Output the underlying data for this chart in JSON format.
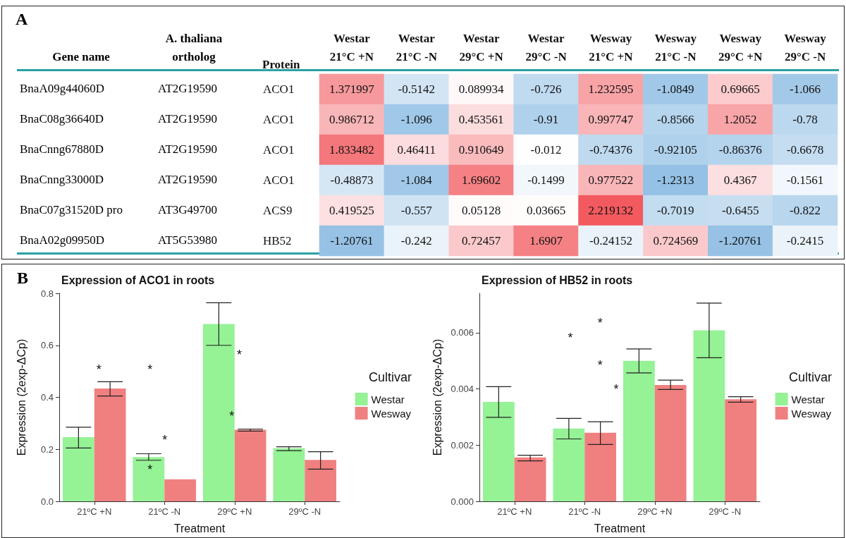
{
  "chart_data": [
    {
      "type": "other",
      "annotations": [
        "Gene name",
        "A. thaliana\northolog",
        "BnaA09g44060D",
        "AT2G19590",
        "BnaC08g36640D",
        "AT2G19590",
        "BnaCnng67880D",
        "AT2G19590",
        "BnaCnng33000D",
        "AT2G19590",
        "BnaC07g31520D pro",
        "AT3G49700",
        "BnaA02g09950D",
        "AT5G53980",
        "A"
      ]
    },
    {
      "type": "heatmap",
      "ylabel": "Protein",
      "categories": [
        "Westar\n21°C +N",
        "Westar\n21°C -N",
        "Westar\n29°C +N",
        "Westar\n29°C -N",
        "Wesway\n21°C +N",
        "Wesway\n21°C -N",
        "Wesway\n29°C +N",
        "Wesway\n29°C -N"
      ],
      "y_categories": [
        "ACO1",
        "ACO1",
        "ACO1",
        "ACO1",
        "ACS9",
        "HB52"
      ],
      "cells": [
        [
          1.371997,
          -0.5142,
          0.089934,
          -0.726,
          1.232595,
          -1.0849,
          0.69665,
          -1.066
        ],
        [
          0.986712,
          -1.096,
          0.453561,
          -0.91,
          0.997747,
          -0.8566,
          1.2052,
          -0.78
        ],
        [
          1.833482,
          0.46411,
          0.910649,
          -0.012,
          -0.74376,
          -0.92105,
          -0.86376,
          -0.6678
        ],
        [
          -0.48873,
          -1.084,
          1.69602,
          -0.1499,
          0.977522,
          -1.2313,
          0.4367,
          -0.1561
        ],
        [
          0.419525,
          -0.557,
          0.05128,
          0.03665,
          2.219132,
          -0.7019,
          -0.6455,
          -0.822
        ],
        [
          -1.20761,
          -0.242,
          0.72457,
          1.6907,
          -0.24152,
          0.724569,
          -1.20761,
          -0.2415
        ]
      ],
      "data_labels": true
    },
    {
      "type": "bar",
      "title": "Expression of ACO1 in roots",
      "xlabel": "Treatment",
      "ylabel": "Expression (2exp-ΔCp)",
      "legend_title": "Cultivar",
      "legend": "right",
      "grid": false,
      "categories": [
        "21ºC +N",
        "21ºC -N",
        "29ºC +N",
        "29ºC -N"
      ],
      "ylim": [
        0,
        0.8
      ],
      "yticks": [
        {
          "value": 0,
          "label": "0.0"
        },
        0.2,
        0.4,
        0.6,
        0.8
      ],
      "series": [
        {
          "name": "Westar",
          "color": "#95f295",
          "values": [
            0.247,
            0.17,
            0.682,
            0.204
          ],
          "errors": [
            [
              0.205,
              0.285
            ],
            [
              0.158,
              0.183
            ],
            [
              0.6,
              0.764
            ],
            [
              0.195,
              0.21
            ]
          ]
        },
        {
          "name": "Wesway",
          "color": "#f08080",
          "values": [
            0.434,
            0.085,
            0.275,
            0.159
          ],
          "errors": [
            [
              0.405,
              0.46
            ],
            null,
            [
              0.27,
              0.278
            ],
            [
              0.124,
              0.191
            ]
          ]
        }
      ],
      "annotations": [
        "B",
        "*",
        "*",
        "*",
        "*",
        "*",
        "*"
      ]
    },
    {
      "type": "bar",
      "title": "Expression of HB52 in roots",
      "xlabel": "Treatment",
      "ylabel": "Expression (2exp-ΔCp)",
      "legend_title": "Cultivar",
      "legend": "right",
      "grid": false,
      "categories": [
        "21ºC +N",
        "21ºC -N",
        "29ºC +N",
        "29ºC -N"
      ],
      "ylim": [
        0,
        0.0074
      ],
      "yticks": [
        {
          "value": 0,
          "label": "0.000"
        },
        {
          "value": 0.002,
          "label": "0.002"
        },
        {
          "value": 0.004,
          "label": "0.004"
        },
        {
          "value": 0.006,
          "label": "0.006"
        }
      ],
      "series": [
        {
          "name": "Westar",
          "color": "#95f295",
          "values": [
            0.00354,
            0.00259,
            0.005,
            0.00608
          ],
          "errors": [
            [
              0.00299,
              0.00408
            ],
            [
              0.00222,
              0.00295
            ],
            [
              0.00457,
              0.00542
            ],
            [
              0.00511,
              0.00705
            ]
          ]
        },
        {
          "name": "Wesway",
          "color": "#f08080",
          "values": [
            0.00156,
            0.00244,
            0.00414,
            0.00363
          ],
          "errors": [
            [
              0.00144,
              0.00164
            ],
            [
              0.00202,
              0.00283
            ],
            [
              0.00398,
              0.00431
            ],
            [
              0.00353,
              0.00372
            ]
          ]
        }
      ],
      "annotations": [
        "*",
        "*",
        "*",
        "*"
      ]
    }
  ]
}
